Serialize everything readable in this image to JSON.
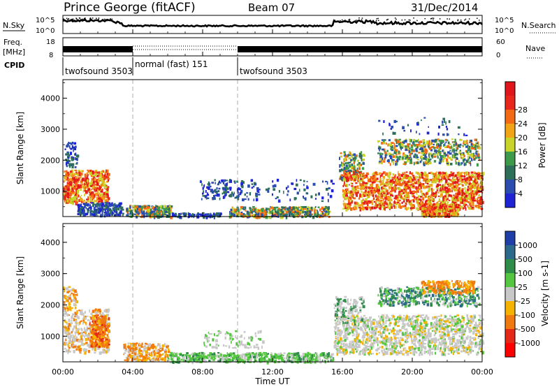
{
  "header": {
    "station": "Prince George (fitACF)",
    "beam": "Beam 07",
    "date": "31/Dec/2014"
  },
  "side_labels": {
    "nsky": "N.Sky",
    "nsearch": "N.Search",
    "freq_line1": "Freq.",
    "freq_line2": "[MHz]",
    "nave": "Nave",
    "cpid": "CPID"
  },
  "strip_ticks": {
    "nsky_left": [
      "10^5",
      "10^0"
    ],
    "nsky_right": [
      "10^5",
      "10^0"
    ],
    "freq_left": [
      "18",
      "8"
    ],
    "nave_right": [
      "60",
      "0"
    ]
  },
  "cpid_segments": [
    {
      "label": "twofsound 3503",
      "start": "00:00"
    },
    {
      "label": "normal (fast) 151",
      "start": "04:00"
    },
    {
      "label": "twofsound 3503",
      "start": "10:00"
    }
  ],
  "x_axis": {
    "label": "Time UT",
    "ticks": [
      "00:00",
      "04:00",
      "08:00",
      "12:00",
      "16:00",
      "20:00",
      "00:00"
    ]
  },
  "colors": {
    "power": [
      "#1f23d6",
      "#2b4db0",
      "#2e6f5a",
      "#3c9a4a",
      "#c9d42a",
      "#f2a417",
      "#f46a12",
      "#e8261b",
      "#e0161b"
    ],
    "velocity": [
      "#1f3ea8",
      "#2c6a8c",
      "#2f8d4a",
      "#55c640",
      "#c8c8c8",
      "#f5b200",
      "#f17a10",
      "#e62818",
      "#ff0000"
    ]
  },
  "chart_data": [
    {
      "type": "heatmap",
      "title": "Power",
      "ylabel": "Slant Range [km]",
      "xlabel": "",
      "xlim": [
        "00:00",
        "24:00"
      ],
      "ylim": [
        180,
        4600
      ],
      "yticks": [
        1000,
        2000,
        3000,
        4000
      ],
      "colorbar": {
        "label": "Power [dB]",
        "ticks": [
          "4",
          "8",
          "12",
          "16",
          "20",
          "24",
          "28"
        ],
        "range": [
          0,
          32
        ]
      },
      "regions": [
        {
          "t": [
            0.0,
            2.6
          ],
          "r": [
            650,
            1700
          ],
          "level": "high"
        },
        {
          "t": [
            0.8,
            3.2
          ],
          "r": [
            300,
            650
          ],
          "level": "low"
        },
        {
          "t": [
            3.8,
            6.0
          ],
          "r": [
            200,
            550
          ],
          "level": "medium"
        },
        {
          "t": [
            8.0,
            11.0
          ],
          "r": [
            700,
            1400
          ],
          "level": "low"
        },
        {
          "t": [
            10.0,
            15.0
          ],
          "r": [
            200,
            500
          ],
          "level": "medium"
        },
        {
          "t": [
            16.0,
            24.0
          ],
          "r": [
            450,
            1600
          ],
          "level": "high"
        },
        {
          "t": [
            18.0,
            23.8
          ],
          "r": [
            2000,
            2700
          ],
          "level": "medium"
        },
        {
          "t": [
            20.5,
            22.5
          ],
          "r": [
            250,
            600
          ],
          "level": "high"
        }
      ]
    },
    {
      "type": "heatmap",
      "title": "Velocity",
      "ylabel": "Slant Range [km]",
      "xlabel": "Time UT",
      "xlim": [
        "00:00",
        "24:00"
      ],
      "ylim": [
        180,
        4600
      ],
      "yticks": [
        1000,
        2000,
        3000,
        4000
      ],
      "colorbar": {
        "label": "Velocity [m s-1]",
        "ticks": [
          "1000",
          "500",
          "100",
          "25",
          "-25",
          "-100",
          "-500",
          "-1000"
        ]
      },
      "regions": [
        {
          "t": [
            0.0,
            2.6
          ],
          "r": [
            500,
            1900
          ],
          "level": "ground-scatter"
        },
        {
          "t": [
            1.5,
            2.6
          ],
          "r": [
            700,
            1700
          ],
          "level": "-300"
        },
        {
          "t": [
            3.5,
            6.0
          ],
          "r": [
            250,
            800
          ],
          "level": "-150"
        },
        {
          "t": [
            6.0,
            15.5
          ],
          "r": [
            200,
            500
          ],
          "level": "+50"
        },
        {
          "t": [
            15.5,
            24.0
          ],
          "r": [
            450,
            1700
          ],
          "level": "ground-scatter"
        },
        {
          "t": [
            18.0,
            23.8
          ],
          "r": [
            2000,
            2700
          ],
          "level": "+150"
        },
        {
          "t": [
            20.5,
            23.5
          ],
          "r": [
            2400,
            2800
          ],
          "level": "-200"
        }
      ]
    }
  ]
}
